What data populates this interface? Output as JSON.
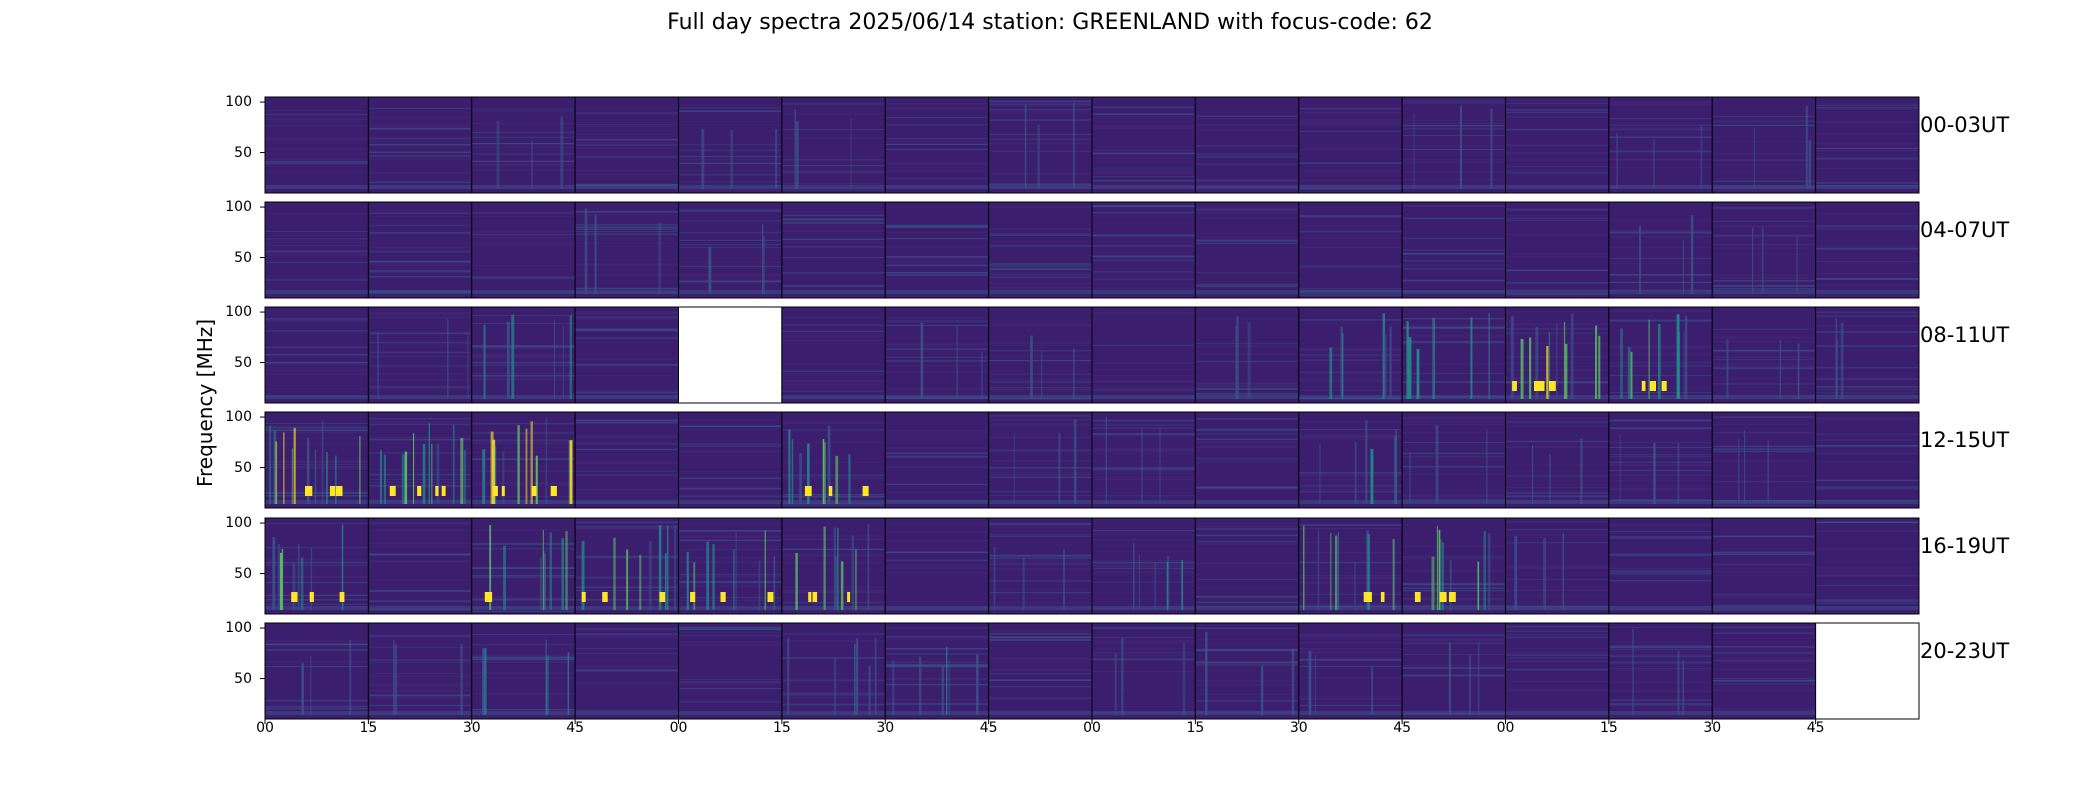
{
  "title": "Full day spectra 2025/06/14 station: GREENLAND with focus-code: 62",
  "ylabel": "Frequency [MHz]",
  "row_labels": [
    "00-03UT",
    "04-07UT",
    "08-11UT",
    "12-15UT",
    "16-19UT",
    "20-23UT"
  ],
  "x_tick_labels": [
    "00",
    "15",
    "30",
    "45",
    "00",
    "15",
    "30",
    "45",
    "00",
    "15",
    "30",
    "45",
    "00",
    "15",
    "30",
    "45"
  ],
  "y_tick_labels": [
    "100",
    "50"
  ],
  "colors": {
    "background_panel": "#3b1f6e",
    "colormap": [
      "#440154",
      "#3b528b",
      "#21908d",
      "#5dc962",
      "#fde725"
    ],
    "missing_panel": "#ffffff"
  },
  "chart_data": {
    "type": "heatmap",
    "title": "Full day spectra 2025/06/14 station: GREENLAND with focus-code: 62",
    "ylabel": "Frequency [MHz]",
    "ylim": [
      10,
      105
    ],
    "y_ticks": [
      100,
      50
    ],
    "x_ticks": [
      "00",
      "15",
      "30",
      "45",
      "00",
      "15",
      "30",
      "45",
      "00",
      "15",
      "30",
      "45",
      "00",
      "15",
      "30",
      "45"
    ],
    "rows": [
      "00-03UT",
      "04-07UT",
      "08-11UT",
      "12-15UT",
      "16-19UT",
      "20-23UT"
    ],
    "panels_per_row": 16,
    "panel_minutes": 15,
    "missing_panels": [
      {
        "row": "08-11UT",
        "panel": 4
      },
      {
        "row": "20-23UT",
        "panel": 15
      }
    ],
    "activity": [
      [
        0,
        0,
        1,
        0,
        1,
        1,
        0,
        1,
        0,
        0,
        0,
        1,
        0,
        1,
        1,
        0
      ],
      [
        0,
        0,
        0,
        1,
        1,
        0,
        0,
        0,
        0,
        0,
        0,
        0,
        0,
        1,
        1,
        0
      ],
      [
        0,
        1,
        2,
        0,
        0,
        0,
        1,
        1,
        0,
        1,
        2,
        2,
        4,
        3,
        1,
        1
      ],
      [
        4,
        4,
        4,
        0,
        0,
        3,
        0,
        1,
        1,
        0,
        2,
        1,
        1,
        1,
        1,
        0
      ],
      [
        3,
        0,
        3,
        3,
        3,
        3,
        0,
        1,
        2,
        0,
        3,
        3,
        1,
        0,
        0,
        0
      ],
      [
        1,
        1,
        2,
        0,
        0,
        2,
        2,
        0,
        1,
        1,
        1,
        1,
        0,
        1,
        0,
        0
      ]
    ]
  }
}
